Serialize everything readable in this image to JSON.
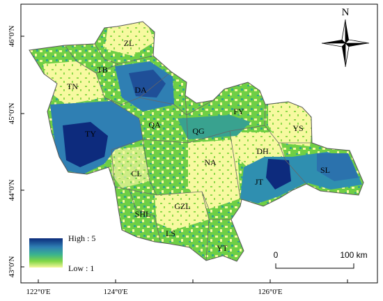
{
  "map": {
    "lat_ticks": [
      "46°0'N",
      "45°0'N",
      "44°0'N",
      "43°0'N"
    ],
    "lon_ticks": [
      "122°0'E",
      "124°0'E",
      "126°0'E"
    ],
    "regions": [
      "ZL",
      "TB",
      "TN",
      "DA",
      "TY",
      "QA",
      "QG",
      "FY",
      "YS",
      "DH",
      "NA",
      "JT",
      "SL",
      "CL",
      "SHL",
      "GZL",
      "LS",
      "YT"
    ]
  },
  "legend": {
    "high_label": "High : 5",
    "low_label": "Low : 1",
    "colors": [
      "#0b2a7a",
      "#2f7fb3",
      "#39b28f",
      "#7fd645",
      "#f4f79c"
    ]
  },
  "scale_bar": {
    "start_label": "0",
    "end_label": "100 km"
  },
  "north_arrow": {
    "label": "N"
  },
  "colors": {
    "frame": "#000000",
    "low": "#f7f9a0",
    "mid": "#6fcf45",
    "high": "#0d2b7d"
  }
}
